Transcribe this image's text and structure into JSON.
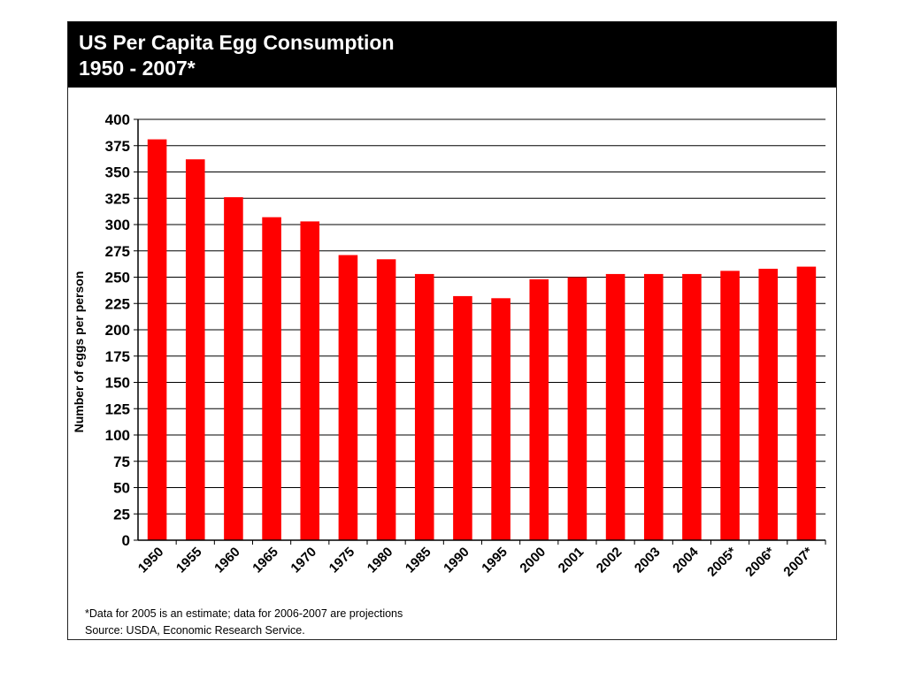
{
  "chart_data": {
    "type": "bar",
    "title": "US Per Capita Egg Consumption",
    "subtitle": "1950 - 2007*",
    "xlabel": "",
    "ylabel": "Number of eggs per person",
    "ylim": [
      0,
      400
    ],
    "yticks": [
      "0",
      "25",
      "50",
      "75",
      "100",
      "125",
      "150",
      "175",
      "200",
      "225",
      "250",
      "275",
      "300",
      "325",
      "350",
      "375",
      "400"
    ],
    "categories": [
      "1950",
      "1955",
      "1960",
      "1965",
      "1970",
      "1975",
      "1980",
      "1985",
      "1990",
      "1995",
      "2000",
      "2001",
      "2002",
      "2003",
      "2004",
      "2005*",
      "2006*",
      "2007*"
    ],
    "values": [
      381,
      362,
      326,
      307,
      303,
      271,
      267,
      253,
      232,
      230,
      248,
      250,
      253,
      253,
      253,
      256,
      258,
      260
    ],
    "grid": true,
    "bar_color": "#ff0000"
  },
  "footnotes": {
    "note": "*Data for 2005 is an estimate; data for 2006-2007 are projections",
    "source": "Source: USDA, Economic Research Service."
  }
}
